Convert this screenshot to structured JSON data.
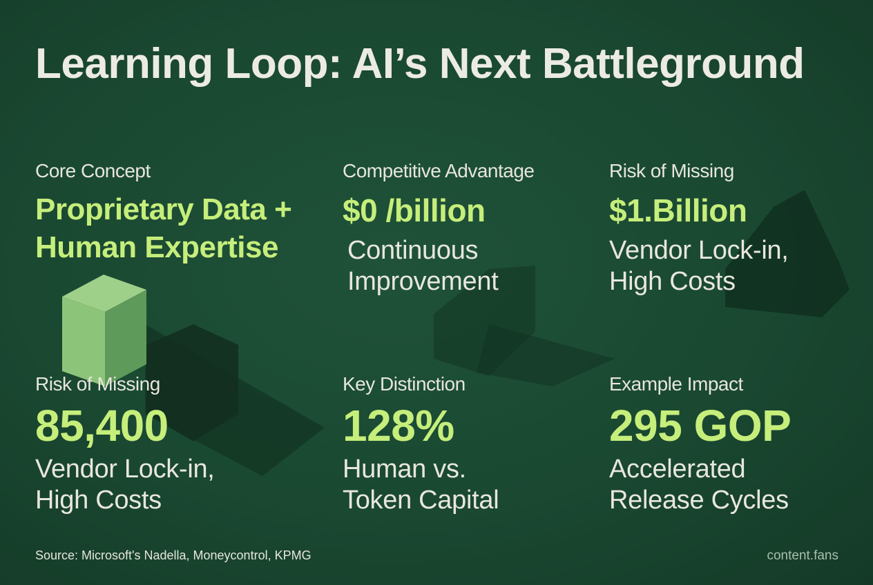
{
  "header": {
    "title": "Learning Loop: AI’s Next Battleground"
  },
  "cards": [
    {
      "label": "Core Concept",
      "value_lines": [
        "Proprietary Data +",
        "Human Expertise"
      ],
      "description_lines": []
    },
    {
      "label": "Competitive Advantage",
      "value_lines": [
        "$0 /billion"
      ],
      "description_lines": [
        "Continuous",
        "Improvement"
      ]
    },
    {
      "label": "Risk of Missing",
      "value_lines": [
        "$1.Billion"
      ],
      "description_lines": [
        "Vendor Lock-in,",
        "High Costs"
      ]
    },
    {
      "label": "Risk of Missing",
      "value_lines": [
        "85,400"
      ],
      "description_lines": [
        "Vendor Lock-in,",
        "High Costs"
      ]
    },
    {
      "label": "Key Distinction",
      "value_lines": [
        "128%"
      ],
      "description_lines": [
        "Human vs.",
        "Token Capital"
      ]
    },
    {
      "label": "Example Impact",
      "value_lines": [
        "295 GOP"
      ],
      "description_lines": [
        "Accelerated",
        "Release Cycles"
      ]
    }
  ],
  "footer": {
    "source": "Source: Microsoft's Nadella, Moneycontrol, KPMG",
    "brand": "content.fans"
  }
}
